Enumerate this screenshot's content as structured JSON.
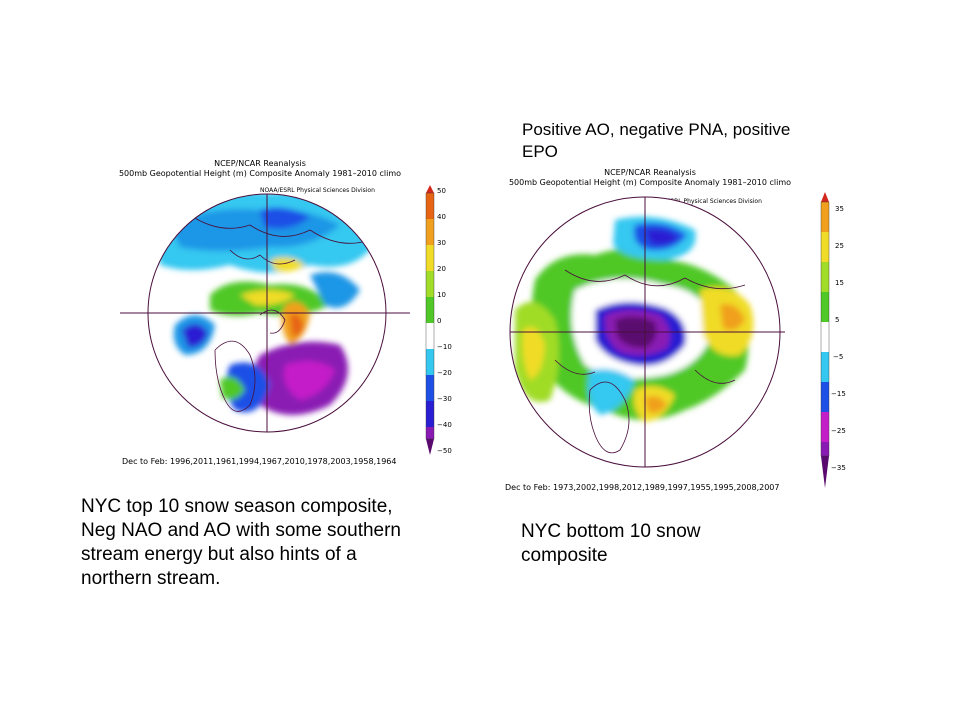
{
  "captions": {
    "right_top": "Positive AO, negative PNA, positive\nEPO",
    "left_bottom": "NYC top 10 snow season composite,\nNeg NAO and AO with some southern\nstream energy but also hints of a\nnorthern stream.",
    "right_bottom": "NYC bottom 10 snow\ncomposite"
  },
  "maps": [
    {
      "header_line1": "NCEP/NCAR Reanalysis",
      "header_line2": "500mb Geopotential Height (m) Composite Anomaly 1981–2010 climo",
      "credit": "NOAA/ESRL Physical Sciences Division",
      "footer": "Dec to Feb: 1996,2011,1961,1994,1967,2010,1978,2003,1958,1964",
      "colorbar_labels": [
        "50",
        "40",
        "30",
        "20",
        "10",
        "0",
        "−10",
        "−20",
        "−30",
        "−40",
        "−50"
      ]
    },
    {
      "header_line1": "NCEP/NCAR Reanalysis",
      "header_line2": "500mb Geopotential Height (m) Composite Anomaly 1981–2010 climo",
      "credit": "NOAA/ESRL Physical Sciences Division",
      "footer": "Dec to Feb: 1973,2002,1998,2012,1989,1997,1955,1995,2008,2007",
      "colorbar_labels": [
        "35",
        "25",
        "15",
        "5",
        "−5",
        "−15",
        "−25",
        "−35"
      ]
    }
  ],
  "colors": {
    "deep_purple": "#5a0a6e",
    "purple": "#8a1ab4",
    "magenta": "#c41ec8",
    "indigo": "#2a1ed2",
    "blue": "#1e50e6",
    "mid_blue": "#1e96e6",
    "cyan": "#34c8f0",
    "white": "#ffffff",
    "green": "#50c828",
    "yellow_green": "#a0dc28",
    "yellow": "#f0dc28",
    "orange": "#f0a01e",
    "dark_orange": "#e66414",
    "red": "#d2281e",
    "outline": "#4a0e3c"
  }
}
